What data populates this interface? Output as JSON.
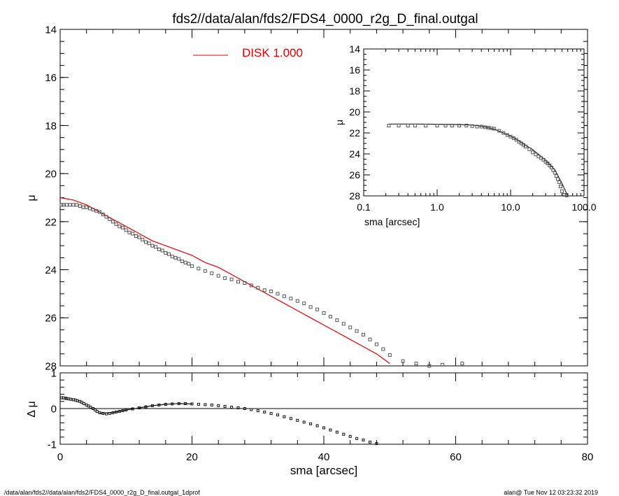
{
  "title": "fds2//data/alan/fds2/FDS4_0000_r2g_D_final.outgal",
  "footer": {
    "left": "/data/alan/fds2//data/alan/fds2/FDS4_0000_r2g_D_final.outgal_1dprof",
    "right": "alan@  Tue Nov 12 03:23:32 2019"
  },
  "colors": {
    "model": "#e00000",
    "data": "#555555",
    "axes": "#000000"
  },
  "chart_data": [
    {
      "id": "main",
      "type": "scatter",
      "xlim": [
        0,
        80
      ],
      "ylim": [
        28,
        14
      ],
      "y_inverted": true,
      "ylabel": "μ",
      "xticks": [
        0,
        20,
        40,
        60,
        80
      ],
      "yticks": [
        14,
        16,
        18,
        20,
        22,
        24,
        26,
        28
      ],
      "legend": {
        "label": "DISK  1.000",
        "placement": "top-center"
      },
      "series": [
        {
          "name": "DISK  1.000",
          "style": "line",
          "color": "#e00000",
          "points": [
            [
              0,
              21.0
            ],
            [
              2,
              21.1
            ],
            [
              4,
              21.3
            ],
            [
              6,
              21.6
            ],
            [
              8,
              21.9
            ],
            [
              10,
              22.2
            ],
            [
              12,
              22.5
            ],
            [
              14,
              22.8
            ],
            [
              16,
              23.0
            ],
            [
              18,
              23.2
            ],
            [
              20,
              23.4
            ],
            [
              22,
              23.7
            ],
            [
              24,
              23.9
            ],
            [
              26,
              24.2
            ],
            [
              28,
              24.5
            ],
            [
              30,
              24.8
            ],
            [
              32,
              25.1
            ],
            [
              34,
              25.4
            ],
            [
              36,
              25.7
            ],
            [
              38,
              26.0
            ],
            [
              40,
              26.3
            ],
            [
              42,
              26.6
            ],
            [
              44,
              26.9
            ],
            [
              46,
              27.2
            ],
            [
              48,
              27.5
            ],
            [
              50,
              27.9
            ]
          ]
        },
        {
          "style": "squares",
          "color": "#555555",
          "points": [
            [
              0.2,
              21.3
            ],
            [
              0.5,
              21.3
            ],
            [
              1,
              21.3
            ],
            [
              1.5,
              21.3
            ],
            [
              2,
              21.3
            ],
            [
              2.5,
              21.3
            ],
            [
              3,
              21.35
            ],
            [
              3.5,
              21.4
            ],
            [
              4,
              21.4
            ],
            [
              4.5,
              21.45
            ],
            [
              5,
              21.5
            ],
            [
              5.5,
              21.55
            ],
            [
              6,
              21.6
            ],
            [
              6.5,
              21.7
            ],
            [
              7,
              21.8
            ],
            [
              7.5,
              21.9
            ],
            [
              8,
              22.0
            ],
            [
              8.5,
              22.1
            ],
            [
              9,
              22.2
            ],
            [
              9.5,
              22.25
            ],
            [
              10,
              22.35
            ],
            [
              10.5,
              22.45
            ],
            [
              11,
              22.5
            ],
            [
              11.5,
              22.6
            ],
            [
              12,
              22.65
            ],
            [
              12.5,
              22.75
            ],
            [
              13,
              22.85
            ],
            [
              13.5,
              22.9
            ],
            [
              14,
              23.0
            ],
            [
              14.5,
              23.05
            ],
            [
              15,
              23.15
            ],
            [
              15.5,
              23.2
            ],
            [
              16,
              23.3
            ],
            [
              16.5,
              23.35
            ],
            [
              17,
              23.45
            ],
            [
              17.5,
              23.5
            ],
            [
              18,
              23.55
            ],
            [
              18.5,
              23.65
            ],
            [
              19,
              23.7
            ],
            [
              19.5,
              23.75
            ],
            [
              20,
              23.85
            ],
            [
              21,
              23.95
            ],
            [
              22,
              24.05
            ],
            [
              23,
              24.15
            ],
            [
              24,
              24.25
            ],
            [
              25,
              24.35
            ],
            [
              26,
              24.4
            ],
            [
              27,
              24.5
            ],
            [
              28,
              24.55
            ],
            [
              29,
              24.65
            ],
            [
              30,
              24.75
            ],
            [
              31,
              24.85
            ],
            [
              32,
              24.9
            ],
            [
              33,
              25.0
            ],
            [
              34,
              25.1
            ],
            [
              35,
              25.2
            ],
            [
              36,
              25.3
            ],
            [
              37,
              25.4
            ],
            [
              38,
              25.55
            ],
            [
              39,
              25.65
            ],
            [
              40,
              25.8
            ],
            [
              41,
              25.95
            ],
            [
              42,
              26.1
            ],
            [
              43,
              26.25
            ],
            [
              44,
              26.4
            ],
            [
              45,
              26.55
            ],
            [
              46,
              26.7
            ],
            [
              47,
              26.9
            ],
            [
              48,
              27.1
            ],
            [
              49,
              27.3
            ],
            [
              50,
              27.55
            ],
            [
              52,
              27.8
            ],
            [
              54,
              27.9
            ],
            [
              56,
              28.0
            ],
            [
              58,
              27.95
            ],
            [
              61,
              27.9
            ]
          ]
        }
      ]
    },
    {
      "id": "inset",
      "type": "scatter",
      "x_scale": "log",
      "xlim": [
        0.1,
        100
      ],
      "ylim": [
        28,
        14
      ],
      "y_inverted": true,
      "xlabel": "sma [arcsec]",
      "ylabel": "μ",
      "xticks": [
        0.1,
        1,
        10,
        100
      ],
      "xtick_labels": [
        "0.1",
        "1.0",
        "10.0",
        "100.0"
      ],
      "yticks": [
        14,
        16,
        18,
        20,
        22,
        24,
        26,
        28
      ],
      "series": [
        {
          "style": "line",
          "color": "#222222",
          "points": [
            [
              0.22,
              21.15
            ],
            [
              0.5,
              21.15
            ],
            [
              1,
              21.17
            ],
            [
              2,
              21.2
            ],
            [
              3,
              21.25
            ],
            [
              4,
              21.35
            ],
            [
              5,
              21.5
            ],
            [
              6,
              21.65
            ],
            [
              8,
              22.0
            ],
            [
              10,
              22.3
            ],
            [
              14,
              22.9
            ],
            [
              20,
              23.6
            ],
            [
              30,
              24.6
            ],
            [
              40,
              25.5
            ],
            [
              50,
              26.8
            ],
            [
              60,
              28.0
            ]
          ]
        },
        {
          "style": "squares",
          "color": "#555555",
          "points": [
            [
              0.22,
              21.3
            ],
            [
              0.3,
              21.3
            ],
            [
              0.4,
              21.3
            ],
            [
              0.5,
              21.3
            ],
            [
              0.7,
              21.3
            ],
            [
              1,
              21.3
            ],
            [
              1.3,
              21.3
            ],
            [
              1.6,
              21.3
            ],
            [
              2,
              21.3
            ],
            [
              2.5,
              21.3
            ],
            [
              3,
              21.35
            ],
            [
              3.5,
              21.4
            ],
            [
              4,
              21.4
            ],
            [
              4.5,
              21.45
            ],
            [
              5,
              21.5
            ],
            [
              5.5,
              21.55
            ],
            [
              6,
              21.6
            ],
            [
              7,
              21.8
            ],
            [
              8,
              22.0
            ],
            [
              9,
              22.2
            ],
            [
              10,
              22.35
            ],
            [
              11,
              22.5
            ],
            [
              12,
              22.65
            ],
            [
              13,
              22.85
            ],
            [
              14,
              23.0
            ],
            [
              15,
              23.15
            ],
            [
              16,
              23.3
            ],
            [
              18,
              23.55
            ],
            [
              20,
              23.85
            ],
            [
              22,
              24.05
            ],
            [
              24,
              24.25
            ],
            [
              26,
              24.4
            ],
            [
              28,
              24.55
            ],
            [
              30,
              24.75
            ],
            [
              32,
              24.9
            ],
            [
              34,
              25.1
            ],
            [
              36,
              25.3
            ],
            [
              38,
              25.55
            ],
            [
              40,
              25.8
            ],
            [
              42,
              26.1
            ],
            [
              44,
              26.4
            ],
            [
              46,
              26.7
            ],
            [
              48,
              27.1
            ],
            [
              50,
              27.55
            ],
            [
              54,
              27.9
            ],
            [
              58,
              27.95
            ]
          ]
        }
      ]
    },
    {
      "id": "residual",
      "type": "scatter",
      "xlim": [
        0,
        80
      ],
      "ylim": [
        -1,
        1
      ],
      "xlabel": "sma [arcsec]",
      "ylabel": "Δ μ",
      "xticks": [
        0,
        20,
        40,
        60,
        80
      ],
      "yticks": [
        -1,
        0,
        1
      ],
      "zero_line": true,
      "series": [
        {
          "style": "squares",
          "color": "#111111",
          "points": [
            [
              0.2,
              0.3
            ],
            [
              0.5,
              0.3
            ],
            [
              0.8,
              0.29
            ],
            [
              1,
              0.28
            ],
            [
              1.3,
              0.27
            ],
            [
              1.6,
              0.26
            ],
            [
              2,
              0.25
            ],
            [
              2.3,
              0.24
            ],
            [
              2.6,
              0.22
            ],
            [
              3,
              0.2
            ],
            [
              3.3,
              0.17
            ],
            [
              3.6,
              0.14
            ],
            [
              4,
              0.1
            ],
            [
              4.3,
              0.07
            ],
            [
              4.6,
              0.04
            ],
            [
              5,
              0.0
            ],
            [
              5.3,
              -0.04
            ],
            [
              5.6,
              -0.08
            ],
            [
              6,
              -0.12
            ],
            [
              6.5,
              -0.14
            ],
            [
              7,
              -0.15
            ],
            [
              7.5,
              -0.14
            ],
            [
              8,
              -0.12
            ],
            [
              8.5,
              -0.1
            ],
            [
              9,
              -0.08
            ],
            [
              9.5,
              -0.06
            ],
            [
              10,
              -0.04
            ],
            [
              11,
              -0.01
            ],
            [
              12,
              0.02
            ],
            [
              13,
              0.05
            ],
            [
              14,
              0.08
            ],
            [
              15,
              0.1
            ],
            [
              16,
              0.12
            ],
            [
              17,
              0.13
            ],
            [
              18,
              0.14
            ],
            [
              19,
              0.14
            ],
            [
              20,
              0.13
            ],
            [
              21,
              0.12
            ],
            [
              22,
              0.11
            ],
            [
              23,
              0.1
            ],
            [
              24,
              0.08
            ],
            [
              25,
              0.06
            ],
            [
              26,
              0.04
            ],
            [
              27,
              0.02
            ],
            [
              28,
              0.0
            ],
            [
              29,
              -0.03
            ],
            [
              30,
              -0.06
            ],
            [
              31,
              -0.1
            ],
            [
              32,
              -0.14
            ],
            [
              33,
              -0.18
            ],
            [
              34,
              -0.23
            ],
            [
              35,
              -0.28
            ],
            [
              36,
              -0.33
            ],
            [
              37,
              -0.38
            ],
            [
              38,
              -0.43
            ],
            [
              39,
              -0.48
            ],
            [
              40,
              -0.54
            ],
            [
              41,
              -0.6
            ],
            [
              42,
              -0.66
            ],
            [
              43,
              -0.72
            ],
            [
              44,
              -0.78
            ],
            [
              45,
              -0.84
            ],
            [
              46,
              -0.88
            ],
            [
              47,
              -0.94
            ],
            [
              48,
              -0.98
            ]
          ]
        },
        {
          "style": "line",
          "color": "#111111",
          "points": [
            [
              6,
              -0.13
            ],
            [
              8,
              -0.11
            ],
            [
              10,
              -0.04
            ],
            [
              12,
              0.02
            ],
            [
              14,
              0.08
            ],
            [
              16,
              0.12
            ],
            [
              18,
              0.14
            ],
            [
              20,
              0.13
            ]
          ]
        }
      ]
    }
  ]
}
